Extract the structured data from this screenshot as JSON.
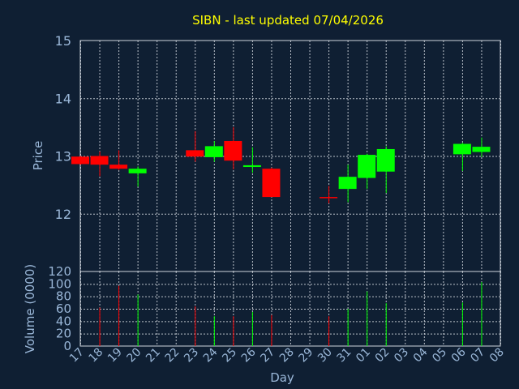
{
  "chart_data": {
    "type": "candlestick",
    "title": "SIBN - last updated 07/04/2026",
    "xlabel": "Day",
    "x_ticks": [
      "17",
      "18",
      "19",
      "20",
      "21",
      "22",
      "23",
      "24",
      "25",
      "26",
      "27",
      "28",
      "29",
      "30",
      "31",
      "01",
      "02",
      "03",
      "04",
      "05",
      "06",
      "07",
      "08"
    ],
    "price_panel": {
      "ylabel": "Price",
      "ylim": [
        11.0,
        15.0
      ],
      "y_ticks": [
        "12",
        "13",
        "14",
        "15"
      ],
      "grid": true,
      "candles": [
        {
          "day": "17",
          "open": 12.99,
          "high": 13.0,
          "low": 12.85,
          "close": 12.86
        },
        {
          "day": "18",
          "open": 13.0,
          "high": 13.08,
          "low": 12.65,
          "close": 12.85
        },
        {
          "day": "19",
          "open": 12.85,
          "high": 13.1,
          "low": 12.76,
          "close": 12.78
        },
        {
          "day": "20",
          "open": 12.7,
          "high": 12.82,
          "low": 12.47,
          "close": 12.78
        },
        {
          "day": "23",
          "open": 13.1,
          "high": 13.43,
          "low": 12.9,
          "close": 12.99
        },
        {
          "day": "24",
          "open": 12.98,
          "high": 13.26,
          "low": 12.9,
          "close": 13.17
        },
        {
          "day": "25",
          "open": 13.26,
          "high": 13.5,
          "low": 12.77,
          "close": 12.92
        },
        {
          "day": "26",
          "open": 12.81,
          "high": 13.15,
          "low": 12.71,
          "close": 12.84
        },
        {
          "day": "27",
          "open": 12.78,
          "high": 12.8,
          "low": 12.29,
          "close": 12.29
        },
        {
          "day": "30",
          "open": 12.29,
          "high": 12.48,
          "low": 12.18,
          "close": 12.28
        },
        {
          "day": "31",
          "open": 12.43,
          "high": 12.85,
          "low": 12.2,
          "close": 12.64
        },
        {
          "day": "01",
          "open": 12.62,
          "high": 13.04,
          "low": 12.43,
          "close": 13.02
        },
        {
          "day": "02",
          "open": 12.73,
          "high": 13.17,
          "low": 12.36,
          "close": 13.12
        },
        {
          "day": "06",
          "open": 13.03,
          "high": 13.23,
          "low": 12.74,
          "close": 13.21
        },
        {
          "day": "07",
          "open": 13.07,
          "high": 13.32,
          "low": 12.98,
          "close": 13.16
        }
      ]
    },
    "volume_panel": {
      "ylabel": "Volume (0000)",
      "ylim": [
        0,
        120
      ],
      "y_ticks": [
        "0",
        "20",
        "40",
        "60",
        "80",
        "100",
        "120"
      ],
      "grid": true,
      "bars": [
        {
          "day": "18",
          "value": 62,
          "color": "#ff0000"
        },
        {
          "day": "19",
          "value": 97,
          "color": "#ff0000"
        },
        {
          "day": "20",
          "value": 83,
          "color": "#00ff00"
        },
        {
          "day": "23",
          "value": 64,
          "color": "#ff0000"
        },
        {
          "day": "24",
          "value": 48,
          "color": "#00ff00"
        },
        {
          "day": "25",
          "value": 48,
          "color": "#ff0000"
        },
        {
          "day": "26",
          "value": 55,
          "color": "#00ff00"
        },
        {
          "day": "27",
          "value": 50,
          "color": "#ff0000"
        },
        {
          "day": "30",
          "value": 48,
          "color": "#ff0000"
        },
        {
          "day": "31",
          "value": 60,
          "color": "#00ff00"
        },
        {
          "day": "01",
          "value": 88,
          "color": "#00ff00"
        },
        {
          "day": "02",
          "value": 69,
          "color": "#00ff00"
        },
        {
          "day": "06",
          "value": 70,
          "color": "#00ff00"
        },
        {
          "day": "07",
          "value": 103,
          "color": "#00ff00"
        }
      ]
    },
    "colors": {
      "background": "#0f1f33",
      "up": "#00ff00",
      "down": "#ff0000",
      "title": "#ffff00",
      "axis_text": "#9ab7d8"
    }
  }
}
